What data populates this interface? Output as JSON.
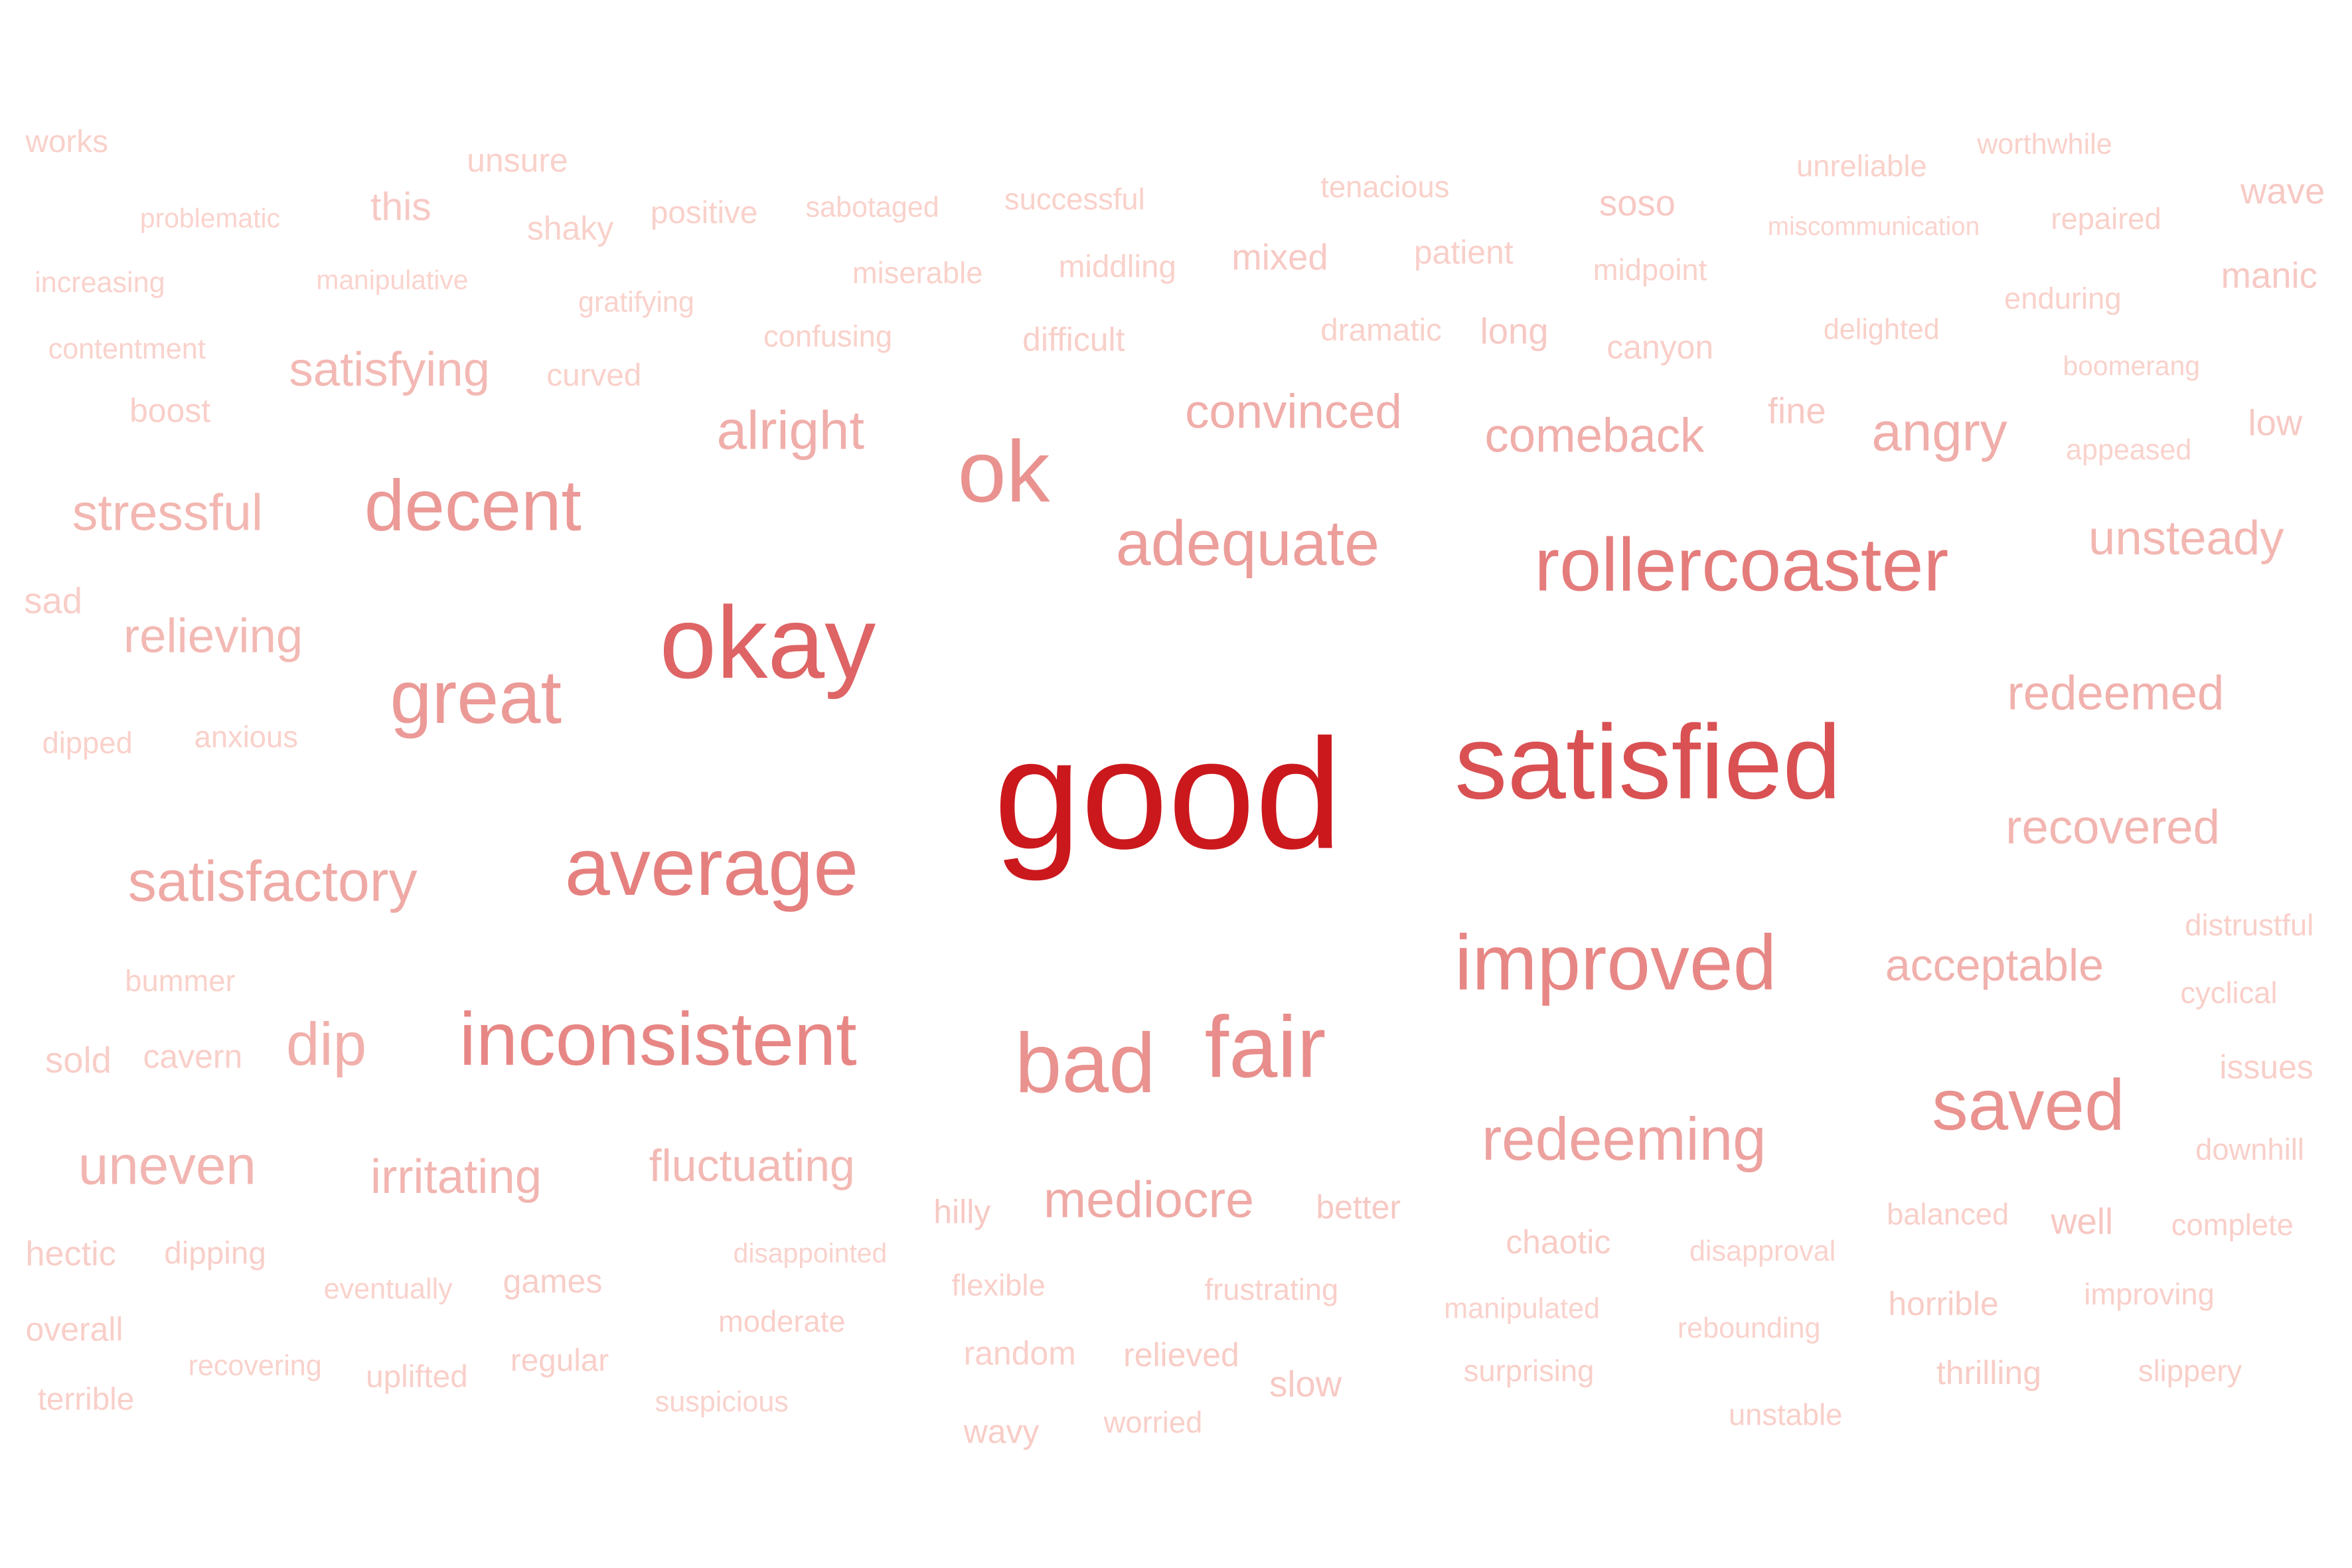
{
  "chart_data": {
    "type": "wordcloud",
    "color_scale": {
      "low": "#fde0d9",
      "high": "#cb181d"
    },
    "words": [
      {
        "text": "good",
        "weight": 1.0
      },
      {
        "text": "satisfied",
        "weight": 0.78
      },
      {
        "text": "okay",
        "weight": 0.7
      },
      {
        "text": "rollercoaster",
        "weight": 0.6
      },
      {
        "text": "average",
        "weight": 0.58
      },
      {
        "text": "improved",
        "weight": 0.55
      },
      {
        "text": "inconsistent",
        "weight": 0.55
      },
      {
        "text": "fair",
        "weight": 0.52
      },
      {
        "text": "saved",
        "weight": 0.5
      },
      {
        "text": "ok",
        "weight": 0.5
      },
      {
        "text": "bad",
        "weight": 0.5
      },
      {
        "text": "great",
        "weight": 0.46
      },
      {
        "text": "decent",
        "weight": 0.46
      },
      {
        "text": "adequate",
        "weight": 0.44
      },
      {
        "text": "redeeming",
        "weight": 0.42
      },
      {
        "text": "mediocre",
        "weight": 0.38
      },
      {
        "text": "satisfactory",
        "weight": 0.38
      },
      {
        "text": "alright",
        "weight": 0.36
      },
      {
        "text": "comeback",
        "weight": 0.36
      },
      {
        "text": "convinced",
        "weight": 0.36
      },
      {
        "text": "angry",
        "weight": 0.36
      },
      {
        "text": "dip",
        "weight": 0.35
      },
      {
        "text": "acceptable",
        "weight": 0.34
      },
      {
        "text": "redeemed",
        "weight": 0.34
      },
      {
        "text": "recovered",
        "weight": 0.32
      },
      {
        "text": "irritating",
        "weight": 0.32
      },
      {
        "text": "uneven",
        "weight": 0.32
      },
      {
        "text": "stressful",
        "weight": 0.31
      },
      {
        "text": "unsteady",
        "weight": 0.31
      },
      {
        "text": "fluctuating",
        "weight": 0.3
      },
      {
        "text": "relieving",
        "weight": 0.3
      },
      {
        "text": "satisfying",
        "weight": 0.3
      },
      {
        "text": "well",
        "weight": 0.22
      },
      {
        "text": "better",
        "weight": 0.2
      },
      {
        "text": "hilly",
        "weight": 0.2
      },
      {
        "text": "slow",
        "weight": 0.2
      },
      {
        "text": "long",
        "weight": 0.2
      },
      {
        "text": "mixed",
        "weight": 0.2
      },
      {
        "text": "soso",
        "weight": 0.2
      },
      {
        "text": "this",
        "weight": 0.2
      },
      {
        "text": "wave",
        "weight": 0.2
      },
      {
        "text": "manic",
        "weight": 0.2
      },
      {
        "text": "low",
        "weight": 0.2
      },
      {
        "text": "fine",
        "weight": 0.2
      },
      {
        "text": "chaotic",
        "weight": 0.18
      },
      {
        "text": "horrible",
        "weight": 0.18
      },
      {
        "text": "thrilling",
        "weight": 0.18
      },
      {
        "text": "slippery",
        "weight": 0.16
      },
      {
        "text": "improving",
        "weight": 0.16
      },
      {
        "text": "complete",
        "weight": 0.16
      },
      {
        "text": "downhill",
        "weight": 0.16
      },
      {
        "text": "issues",
        "weight": 0.16
      },
      {
        "text": "cyclical",
        "weight": 0.16
      },
      {
        "text": "distrustful",
        "weight": 0.16
      },
      {
        "text": "balanced",
        "weight": 0.16
      },
      {
        "text": "unstable",
        "weight": 0.16
      },
      {
        "text": "surprising",
        "weight": 0.16
      },
      {
        "text": "rebounding",
        "weight": 0.14
      },
      {
        "text": "manipulated",
        "weight": 0.14
      },
      {
        "text": "disapproval",
        "weight": 0.14
      },
      {
        "text": "frustrating",
        "weight": 0.16
      },
      {
        "text": "relieved",
        "weight": 0.18
      },
      {
        "text": "worried",
        "weight": 0.16
      },
      {
        "text": "wavy",
        "weight": 0.18
      },
      {
        "text": "random",
        "weight": 0.16
      },
      {
        "text": "flexible",
        "weight": 0.16
      },
      {
        "text": "moderate",
        "weight": 0.16
      },
      {
        "text": "disappointed",
        "weight": 0.14
      },
      {
        "text": "suspicious",
        "weight": 0.14
      },
      {
        "text": "regular",
        "weight": 0.16
      },
      {
        "text": "games",
        "weight": 0.17
      },
      {
        "text": "uplifted",
        "weight": 0.16
      },
      {
        "text": "eventually",
        "weight": 0.14
      },
      {
        "text": "recovering",
        "weight": 0.14
      },
      {
        "text": "terrible",
        "weight": 0.16
      },
      {
        "text": "overall",
        "weight": 0.16
      },
      {
        "text": "hectic",
        "weight": 0.17
      },
      {
        "text": "dipping",
        "weight": 0.16
      },
      {
        "text": "sold",
        "weight": 0.17
      },
      {
        "text": "cavern",
        "weight": 0.16
      },
      {
        "text": "bummer",
        "weight": 0.15
      },
      {
        "text": "dipped",
        "weight": 0.15
      },
      {
        "text": "anxious",
        "weight": 0.15
      },
      {
        "text": "sad",
        "weight": 0.17
      },
      {
        "text": "boost",
        "weight": 0.16
      },
      {
        "text": "contentment",
        "weight": 0.14
      },
      {
        "text": "increasing",
        "weight": 0.14
      },
      {
        "text": "problematic",
        "weight": 0.13
      },
      {
        "text": "works",
        "weight": 0.15
      },
      {
        "text": "manipulative",
        "weight": 0.13
      },
      {
        "text": "gratifying",
        "weight": 0.14
      },
      {
        "text": "curved",
        "weight": 0.15
      },
      {
        "text": "unsure",
        "weight": 0.15
      },
      {
        "text": "shaky",
        "weight": 0.15
      },
      {
        "text": "positive",
        "weight": 0.15
      },
      {
        "text": "sabotaged",
        "weight": 0.14
      },
      {
        "text": "successful",
        "weight": 0.15
      },
      {
        "text": "miserable",
        "weight": 0.15
      },
      {
        "text": "middling",
        "weight": 0.15
      },
      {
        "text": "confusing",
        "weight": 0.15
      },
      {
        "text": "difficult",
        "weight": 0.16
      },
      {
        "text": "tenacious",
        "weight": 0.15
      },
      {
        "text": "patient",
        "weight": 0.16
      },
      {
        "text": "dramatic",
        "weight": 0.15
      },
      {
        "text": "midpoint",
        "weight": 0.15
      },
      {
        "text": "canyon",
        "weight": 0.16
      },
      {
        "text": "unreliable",
        "weight": 0.15
      },
      {
        "text": "miscommunication",
        "weight": 0.13
      },
      {
        "text": "delighted",
        "weight": 0.15
      },
      {
        "text": "worthwhile",
        "weight": 0.15
      },
      {
        "text": "repaired",
        "weight": 0.15
      },
      {
        "text": "enduring",
        "weight": 0.15
      },
      {
        "text": "boomerang",
        "weight": 0.14
      },
      {
        "text": "appeased",
        "weight": 0.14
      }
    ]
  }
}
